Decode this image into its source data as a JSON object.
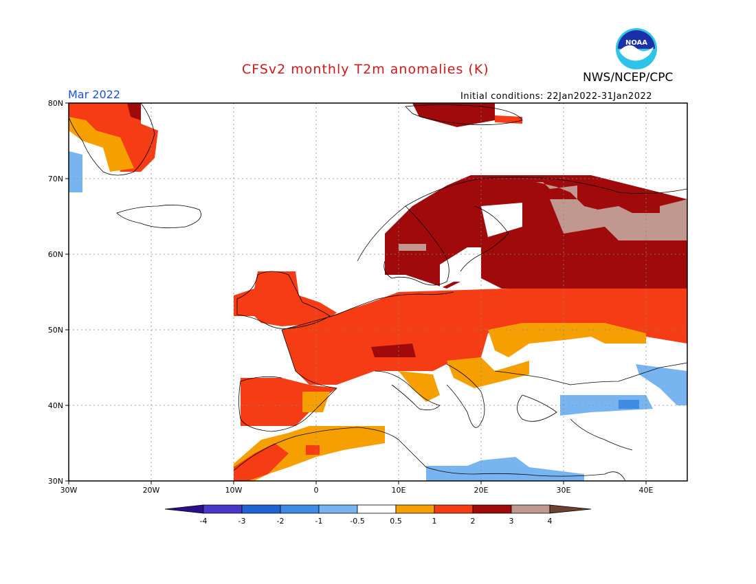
{
  "header": {
    "title": "CFSv2 monthly T2m anomalies (K)",
    "month": "Mar 2022",
    "organization": "NWS/NCEP/CPC",
    "initial_conditions": "Initial conditions: 22Jan2022-31Jan2022"
  },
  "logo": {
    "text": "NOAA",
    "icon": "noaa-logo-icon"
  },
  "map": {
    "lat_labels": [
      "80N",
      "70N",
      "60N",
      "50N",
      "40N",
      "30N"
    ],
    "lon_labels": [
      "30W",
      "20W",
      "10W",
      "0",
      "10E",
      "20E",
      "30E",
      "40E"
    ],
    "extent": {
      "lon": [
        -30,
        45
      ],
      "lat": [
        30,
        80
      ]
    },
    "grid": true
  },
  "colorbar": {
    "labels": [
      "-4",
      "-3",
      "-2",
      "-1",
      "-0.5",
      "0.5",
      "1",
      "2",
      "3",
      "4"
    ],
    "colors": [
      "#2d0f8c",
      "#4a38c8",
      "#1e64d2",
      "#3c8ce6",
      "#78b4f0",
      "#ffffff",
      "#f5a000",
      "#f53c14",
      "#a00a0a",
      "#c09890",
      "#6e4030"
    ]
  }
}
